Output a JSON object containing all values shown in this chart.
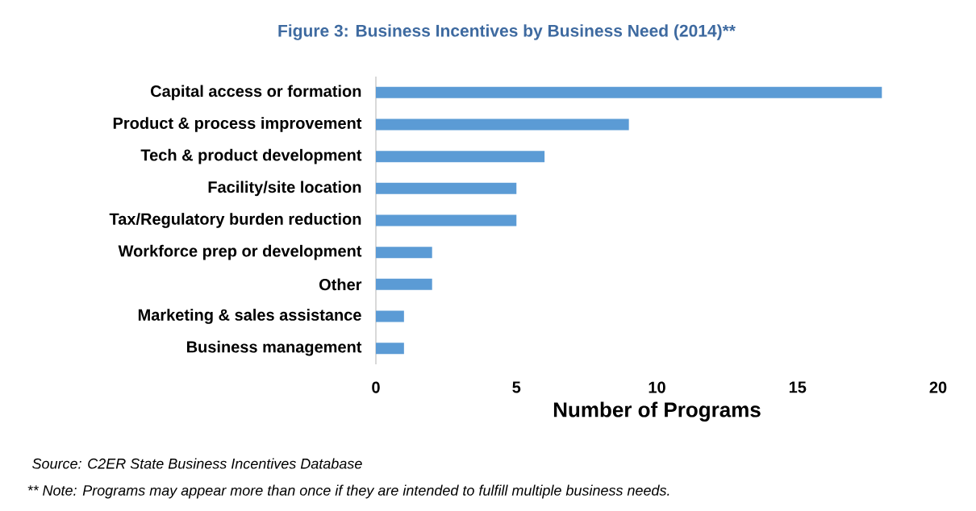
{
  "chart_data": {
    "type": "bar",
    "orientation": "horizontal",
    "title": "Figure 3: Business Incentives by Business Need (2014)**",
    "xlabel": "Number of Programs",
    "categories": [
      "Capital access or formation",
      "Product & process improvement",
      "Tech & product development",
      "Facility/site location",
      "Tax/Regulatory burden reduction",
      "Workforce prep or development",
      "Other",
      "Marketing & sales assistance",
      "Business management"
    ],
    "values": [
      18,
      9,
      6,
      5,
      5,
      2,
      2,
      1,
      1
    ],
    "color": "#5b9bd5",
    "xlim": [
      0,
      20
    ],
    "xticks": [
      0,
      5,
      10,
      15,
      20
    ],
    "grid": false,
    "annotations": [
      "Source: C2ER State Business Incentives Database",
      "** Note: Programs may appear more than once if they are intended to fulfill multiple business needs."
    ]
  }
}
